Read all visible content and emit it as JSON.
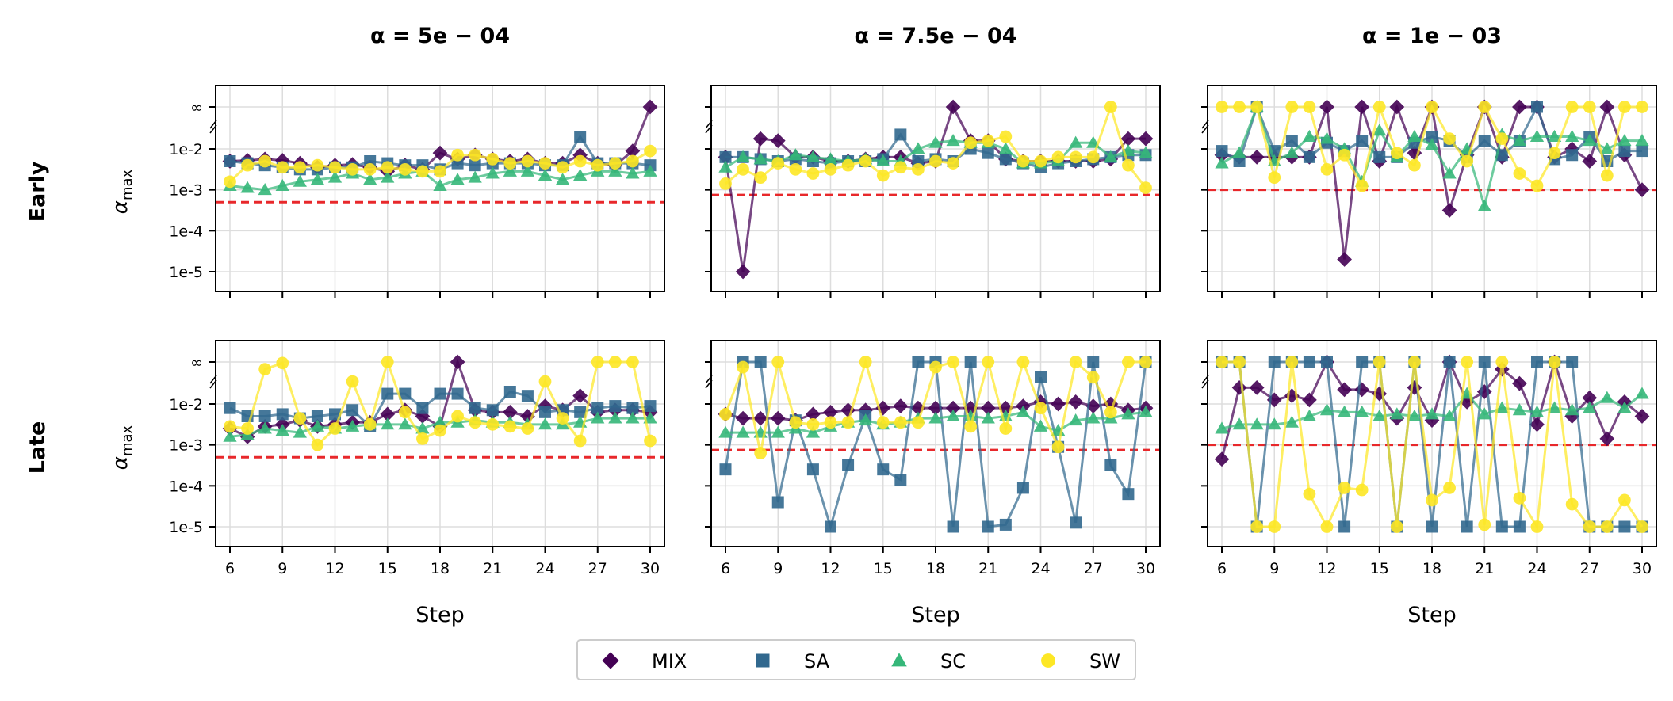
{
  "chart_data": {
    "type": "line",
    "panel_grid": {
      "rows": [
        "Early",
        "Late"
      ],
      "columns": [
        "α = 5e − 04",
        "α = 7.5e − 04",
        "α = 1e − 03"
      ]
    },
    "column_titles": [
      "α = 5e − 04",
      "α = 7.5e − 04",
      "α = 1e − 03"
    ],
    "row_titles": [
      "Early",
      "Late"
    ],
    "ylabel": "α_max",
    "ylabel_main": "α",
    "ylabel_sub": "max",
    "xlabel": "Step",
    "x": [
      6,
      7,
      8,
      9,
      10,
      11,
      12,
      13,
      14,
      15,
      16,
      17,
      18,
      19,
      20,
      21,
      22,
      23,
      24,
      25,
      26,
      27,
      28,
      29,
      30
    ],
    "x_ticks": [
      6,
      9,
      12,
      15,
      18,
      21,
      24,
      27,
      30
    ],
    "x_tick_labels": [
      "6",
      "9",
      "12",
      "15",
      "18",
      "21",
      "24",
      "27",
      "30"
    ],
    "y_scale": "log10 with broken axis to infinity",
    "y_ticks": [
      "∞",
      "1e-2",
      "1e-3",
      "1e-4",
      "1e-5"
    ],
    "y_tick_log_values": [
      null,
      -2,
      -3,
      -4,
      -5
    ],
    "y_log_range": [
      -5.45,
      -1.5
    ],
    "inf_log_position": -1.0,
    "legend": {
      "position": "bottom-center",
      "entries": [
        "MIX",
        "SA",
        "SC",
        "SW"
      ]
    },
    "series_style": [
      {
        "name": "MIX",
        "color": "#440154",
        "marker": "diamond"
      },
      {
        "name": "SA",
        "color": "#31688e",
        "marker": "square"
      },
      {
        "name": "SC",
        "color": "#35b779",
        "marker": "triangle"
      },
      {
        "name": "SW",
        "color": "#fde725",
        "marker": "circle"
      }
    ],
    "threshold_color": "#e8282b",
    "panels": [
      {
        "row": "Early",
        "column": "α = 5e − 04",
        "threshold": 0.0005,
        "series": [
          {
            "name": "MIX",
            "log10_values": [
              -2.3,
              -2.28,
              -2.25,
              -2.28,
              -2.35,
              -2.45,
              -2.4,
              -2.38,
              -2.45,
              -2.55,
              -2.4,
              -2.5,
              -2.1,
              -2.25,
              -2.15,
              -2.25,
              -2.3,
              -2.25,
              -2.35,
              -2.35,
              -2.15,
              -2.35,
              -2.4,
              -2.05,
              "inf"
            ]
          },
          {
            "name": "SA",
            "log10_values": [
              -2.3,
              -2.35,
              -2.4,
              -2.45,
              -2.5,
              -2.5,
              -2.45,
              -2.45,
              -2.3,
              -2.35,
              -2.4,
              -2.4,
              -2.5,
              -2.35,
              -2.4,
              -2.35,
              -2.35,
              -2.35,
              -2.4,
              -2.4,
              -1.7,
              -2.35,
              -2.35,
              -2.35,
              -2.4
            ]
          },
          {
            "name": "SC",
            "log10_values": [
              -2.9,
              -2.95,
              -3.0,
              -2.9,
              -2.8,
              -2.75,
              -2.7,
              -2.6,
              -2.75,
              -2.7,
              -2.6,
              -2.55,
              -2.9,
              -2.75,
              -2.7,
              -2.6,
              -2.55,
              -2.55,
              -2.65,
              -2.75,
              -2.65,
              -2.55,
              -2.55,
              -2.6,
              -2.55
            ]
          },
          {
            "name": "SW",
            "log10_values": [
              -2.8,
              -2.4,
              -2.3,
              -2.45,
              -2.45,
              -2.4,
              -2.45,
              -2.5,
              -2.5,
              -2.45,
              -2.5,
              -2.55,
              -2.55,
              -2.15,
              -2.15,
              -2.25,
              -2.35,
              -2.3,
              -2.35,
              -2.45,
              -2.3,
              -2.4,
              -2.35,
              -2.3,
              -2.05
            ]
          }
        ]
      },
      {
        "row": "Early",
        "column": "α = 7.5e − 04",
        "threshold": 0.00075,
        "series": [
          {
            "name": "MIX",
            "log10_values": [
              -2.2,
              -5.0,
              -1.75,
              -1.8,
              -2.2,
              -2.2,
              -2.3,
              -2.3,
              -2.25,
              -2.2,
              -2.2,
              -2.35,
              -2.3,
              "inf",
              -1.8,
              -1.8,
              -2.25,
              -2.3,
              -2.3,
              -2.3,
              -2.3,
              -2.3,
              -2.25,
              -1.75,
              -1.75
            ]
          },
          {
            "name": "SA",
            "log10_values": [
              -2.2,
              -2.2,
              -2.25,
              -2.3,
              -2.25,
              -2.3,
              -2.35,
              -2.3,
              -2.3,
              -2.25,
              -1.65,
              -2.3,
              -2.25,
              -2.3,
              -2.0,
              -2.1,
              -2.25,
              -2.35,
              -2.45,
              -2.35,
              -2.3,
              -2.25,
              -2.2,
              -2.15,
              -2.15
            ]
          },
          {
            "name": "SC",
            "log10_values": [
              -2.45,
              -2.2,
              -2.25,
              -2.3,
              -2.15,
              -2.2,
              -2.25,
              -2.3,
              -2.25,
              -2.3,
              -2.3,
              -2.0,
              -1.85,
              -1.8,
              -1.85,
              -1.85,
              -2.0,
              -2.35,
              -2.35,
              -2.3,
              -1.85,
              -1.85,
              -2.2,
              -2.05,
              -2.1
            ]
          },
          {
            "name": "SW",
            "log10_values": [
              -2.85,
              -2.5,
              -2.7,
              -2.35,
              -2.5,
              -2.6,
              -2.5,
              -2.4,
              -2.3,
              -2.65,
              -2.45,
              -2.5,
              -2.3,
              -2.35,
              -1.85,
              -1.8,
              -1.7,
              -2.3,
              -2.3,
              -2.2,
              -2.2,
              -2.2,
              "inf",
              -2.4,
              -2.95
            ]
          }
        ]
      },
      {
        "row": "Early",
        "column": "α = 1e − 03",
        "threshold": 0.001,
        "series": [
          {
            "name": "MIX",
            "log10_values": [
              -2.15,
              -2.2,
              -2.2,
              -2.2,
              -2.2,
              -2.2,
              "inf",
              -4.7,
              "inf",
              -2.3,
              "inf",
              -2.1,
              "inf",
              -3.5,
              -2.15,
              "inf",
              -2.2,
              "inf",
              "inf",
              -2.2,
              -2.0,
              -2.3,
              "inf",
              -2.15,
              -3.0
            ]
          },
          {
            "name": "SA",
            "log10_values": [
              -2.05,
              -2.3,
              "inf",
              -2.05,
              -1.8,
              -2.2,
              -1.85,
              -2.05,
              -1.8,
              -2.2,
              -2.2,
              -1.85,
              -1.7,
              -1.8,
              -2.2,
              -1.8,
              -2.15,
              -1.8,
              "inf",
              -2.25,
              -2.15,
              -1.7,
              -2.3,
              -2.05,
              -2.05
            ]
          },
          {
            "name": "SC",
            "log10_values": [
              -2.35,
              -2.1,
              "inf",
              -2.3,
              -2.1,
              -1.7,
              -1.75,
              -2.0,
              -2.8,
              -1.55,
              -2.2,
              -1.7,
              -1.9,
              -2.6,
              -2.0,
              -3.4,
              -1.65,
              -1.8,
              -1.7,
              -1.7,
              -1.7,
              -1.8,
              -2.0,
              -1.8,
              -1.8
            ]
          },
          {
            "name": "SW",
            "log10_values": [
              "inf",
              "inf",
              "inf",
              -2.7,
              "inf",
              "inf",
              -2.5,
              -2.15,
              -2.9,
              "inf",
              -2.1,
              -2.4,
              "inf",
              -1.75,
              -2.3,
              "inf",
              -1.75,
              -2.6,
              -2.9,
              -2.1,
              "inf",
              "inf",
              -2.65,
              "inf",
              "inf"
            ]
          }
        ]
      },
      {
        "row": "Late",
        "column": "α = 5e − 04",
        "threshold": 0.0005,
        "series": [
          {
            "name": "MIX",
            "log10_values": [
              -2.6,
              -2.8,
              -2.55,
              -2.5,
              -2.4,
              -2.55,
              -2.5,
              -2.45,
              -2.45,
              -2.25,
              -2.15,
              -2.3,
              -2.55,
              "inf",
              -2.15,
              -2.2,
              -2.2,
              -2.3,
              -2.05,
              -2.15,
              -1.8,
              -2.2,
              -2.15,
              -2.15,
              -2.2
            ]
          },
          {
            "name": "SA",
            "log10_values": [
              -2.1,
              -2.3,
              -2.3,
              -2.25,
              -2.35,
              -2.3,
              -2.25,
              -2.15,
              -2.55,
              -1.75,
              -1.75,
              -2.1,
              -1.75,
              -1.75,
              -2.1,
              -2.15,
              -1.7,
              -1.8,
              -2.2,
              -2.15,
              -2.2,
              -2.1,
              -2.05,
              -2.1,
              -2.05
            ]
          },
          {
            "name": "SC",
            "log10_values": [
              -2.8,
              -2.75,
              -2.6,
              -2.65,
              -2.7,
              -2.55,
              -2.6,
              -2.55,
              -2.5,
              -2.5,
              -2.5,
              -2.6,
              -2.45,
              -2.45,
              -2.4,
              -2.45,
              -2.45,
              -2.5,
              -2.5,
              -2.5,
              -2.45,
              -2.35,
              -2.35,
              -2.35,
              -2.35
            ]
          },
          {
            "name": "SW",
            "log10_values": [
              -2.55,
              -2.6,
              -1.15,
              -1.0,
              -2.35,
              -3.0,
              -2.6,
              -1.45,
              -2.5,
              "inf",
              -2.2,
              -2.85,
              -2.65,
              -2.3,
              -2.45,
              -2.5,
              -2.55,
              -2.6,
              -1.45,
              -2.35,
              -2.9,
              "inf",
              "inf",
              "inf",
              -2.9
            ]
          }
        ]
      },
      {
        "row": "Late",
        "column": "α = 7.5e − 04",
        "threshold": 0.00075,
        "series": [
          {
            "name": "MIX",
            "log10_values": [
              -2.25,
              -2.35,
              -2.35,
              -2.35,
              -2.4,
              -2.25,
              -2.2,
              -2.15,
              -2.15,
              -2.1,
              -2.05,
              -2.1,
              -2.1,
              -2.1,
              -2.1,
              -2.1,
              -2.1,
              -2.05,
              -1.95,
              -2.0,
              -1.95,
              -2.05,
              -2.0,
              -2.15,
              -2.1
            ]
          },
          {
            "name": "SA",
            "log10_values": [
              -3.6,
              "inf",
              "inf",
              -4.4,
              -2.4,
              -3.6,
              -5.0,
              -3.5,
              -2.3,
              -3.6,
              -3.85,
              "inf",
              "inf",
              -5.0,
              "inf",
              -5.0,
              -4.95,
              -4.05,
              -1.35,
              -3.05,
              -4.9,
              "inf",
              -3.5,
              -4.2,
              "inf"
            ]
          },
          {
            "name": "SC",
            "log10_values": [
              -2.7,
              -2.7,
              -2.7,
              -2.7,
              -2.6,
              -2.7,
              -2.55,
              -2.45,
              -2.4,
              -2.5,
              -2.45,
              -2.35,
              -2.35,
              -2.3,
              -2.3,
              -2.35,
              -2.3,
              -2.2,
              -2.55,
              -2.65,
              -2.4,
              -2.35,
              -2.35,
              -2.25,
              -2.2
            ]
          },
          {
            "name": "SW",
            "log10_values": [
              -2.25,
              -1.1,
              -3.2,
              "inf",
              -2.45,
              -2.5,
              -2.45,
              -2.45,
              "inf",
              -2.45,
              -2.45,
              -2.45,
              -1.1,
              "inf",
              -2.55,
              "inf",
              -2.6,
              "inf",
              -2.1,
              -3.05,
              "inf",
              -1.35,
              -2.2,
              "inf",
              "inf"
            ]
          }
        ]
      },
      {
        "row": "Late",
        "column": "α = 1e − 03",
        "threshold": 0.001,
        "series": [
          {
            "name": "MIX",
            "log10_values": [
              -3.35,
              -1.6,
              -1.6,
              -1.9,
              -1.8,
              -1.9,
              "inf",
              -1.65,
              -1.65,
              -1.75,
              -2.35,
              -1.6,
              -2.4,
              "inf",
              -1.95,
              -1.7,
              -1.15,
              -1.5,
              -2.5,
              "inf",
              -2.3,
              -1.85,
              -2.85,
              -1.95,
              -2.3
            ]
          },
          {
            "name": "SA",
            "log10_values": [
              "inf",
              "inf",
              -5.0,
              "inf",
              "inf",
              "inf",
              "inf",
              -5.0,
              "inf",
              "inf",
              -5.0,
              "inf",
              -5.0,
              "inf",
              -5.0,
              "inf",
              -5.0,
              -5.0,
              "inf",
              "inf",
              "inf",
              -5.0,
              -5.0,
              -5.0,
              -5.0
            ]
          },
          {
            "name": "SC",
            "log10_values": [
              -2.6,
              -2.5,
              -2.5,
              -2.5,
              -2.45,
              -2.3,
              -2.15,
              -2.2,
              -2.2,
              -2.3,
              -2.25,
              -2.3,
              -2.25,
              -2.3,
              -1.75,
              -2.25,
              -2.1,
              -2.15,
              -2.2,
              -2.1,
              -2.15,
              -2.1,
              -1.85,
              -2.1,
              -1.75
            ]
          },
          {
            "name": "SW",
            "log10_values": [
              "inf",
              "inf",
              -5.0,
              -5.0,
              "inf",
              -4.2,
              -5.0,
              -4.05,
              -4.1,
              "inf",
              -5.0,
              "inf",
              -4.35,
              -4.05,
              "inf",
              -4.95,
              "inf",
              -4.3,
              -5.0,
              "inf",
              -4.45,
              -5.0,
              -5.0,
              -4.35,
              -5.0
            ]
          }
        ]
      }
    ]
  }
}
